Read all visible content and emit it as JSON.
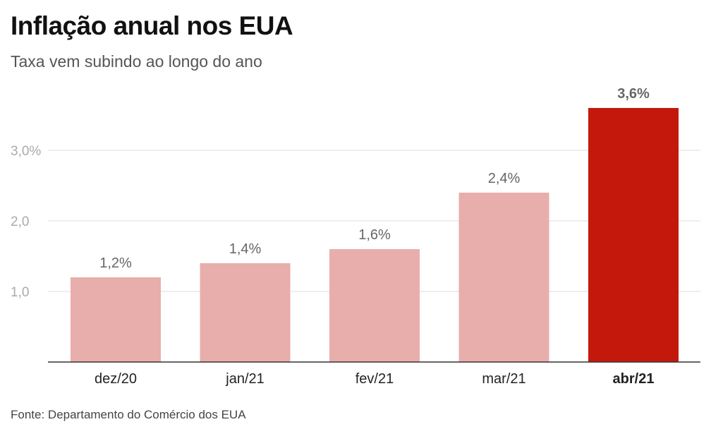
{
  "header": {
    "title": "Inflação anual nos EUA",
    "subtitle": "Taxa vem subindo ao longo do ano"
  },
  "footer": {
    "source": "Fonte: Departamento do Comércio dos EUA"
  },
  "colors": {
    "bar": "#e8aeab",
    "highlight": "#c4180c",
    "grid": "#dddddd",
    "axis": "#333333",
    "tick_label": "#aaaaaa",
    "value_label": "#666666",
    "category_label": "#222222"
  },
  "chart_data": {
    "type": "bar",
    "title": "Inflação anual nos EUA",
    "subtitle": "Taxa vem subindo ao longo do ano",
    "categories": [
      "dez/20",
      "jan/21",
      "fev/21",
      "mar/21",
      "abr/21"
    ],
    "values": [
      1.2,
      1.4,
      1.6,
      2.4,
      3.6
    ],
    "value_labels": [
      "1,2%",
      "1,4%",
      "1,6%",
      "2,4%",
      "3,6%"
    ],
    "highlight_index": 4,
    "ylim": [
      0,
      3.6
    ],
    "yticks": [
      1.0,
      2.0,
      3.0
    ],
    "ytick_labels": [
      "1,0",
      "2,0",
      "3,0%"
    ],
    "grid": true,
    "xlabel": "",
    "ylabel": ""
  }
}
